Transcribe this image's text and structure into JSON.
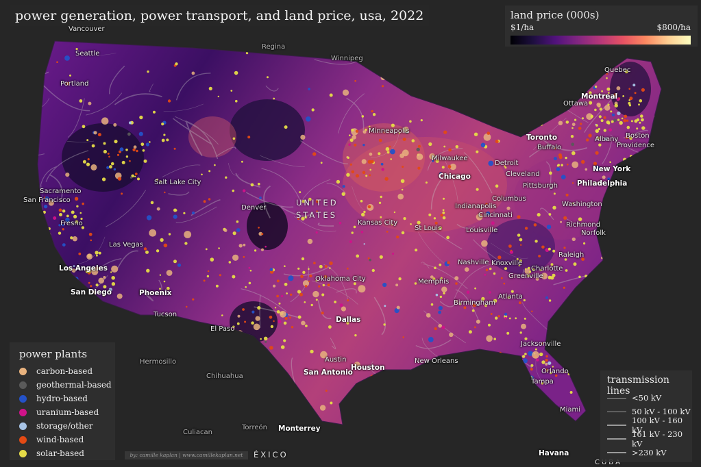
{
  "title": "power generation, power transport, and land price, usa, 2022",
  "land_price_legend": {
    "title": "land price (000s)",
    "min_label": "$1/ha",
    "max_label": "$800/ha"
  },
  "power_plants_legend": {
    "title": "power plants",
    "items": [
      {
        "label": "carbon-based",
        "color": "#e8b27e"
      },
      {
        "label": "geothermal-based",
        "color": "#5a5a5a"
      },
      {
        "label": "hydro-based",
        "color": "#2452c8"
      },
      {
        "label": "uranium-based",
        "color": "#d0128a"
      },
      {
        "label": "storage/other",
        "color": "#a8c4e6"
      },
      {
        "label": "wind-based",
        "color": "#e34a14"
      },
      {
        "label": "solar-based",
        "color": "#e6dc48"
      }
    ]
  },
  "transmission_legend": {
    "title": "transmission lines",
    "items": [
      {
        "label": "<50 kV"
      },
      {
        "label": "50 kV - 100 kV"
      },
      {
        "label": "100 kV - 160 kV"
      },
      {
        "label": "161 kV - 230 kV"
      },
      {
        "label": ">230 kV"
      }
    ]
  },
  "credit": "by: camille kaplan | www.camillekaplan.net",
  "country_labels": {
    "usa_line1": "UNITED",
    "usa_line2": "STATES",
    "mexico": "ÉXICO",
    "cuba": "CUBA"
  },
  "places": {
    "vancouver": "Vancouver",
    "regina": "Regina",
    "winnipeg": "Winnipeg",
    "quebec": "Quebec",
    "montreal": "Montreal",
    "ottawa": "Ottawa",
    "toronto": "Toronto",
    "buffalo": "Buffalo",
    "albany": "Albany",
    "boston": "Boston",
    "providence": "Providence",
    "new_york": "New York",
    "philadelphia": "Philadelphia",
    "washington": "Washington",
    "richmond": "Richmond",
    "norfolk": "Norfolk",
    "raleigh": "Raleigh",
    "charlotte": "Charlotte",
    "greenville": "Greenville",
    "knoxville": "Knoxville",
    "nashville": "Nashville",
    "atlanta": "Atlanta",
    "birmingham": "Birmingham",
    "memphis": "Memphis",
    "jacksonville": "Jacksonville",
    "orlando": "Orlando",
    "tampa": "Tampa",
    "miami": "Miami",
    "havana": "Havana",
    "new_orleans": "New Orleans",
    "houston": "Houston",
    "san_antonio": "San Antonio",
    "austin": "Austin",
    "dallas": "Dallas",
    "oklahoma_city": "Oklahoma City",
    "el_paso": "El Paso",
    "tucson": "Tucson",
    "phoenix": "Phoenix",
    "san_diego": "San Diego",
    "los_angeles": "Los Angeles",
    "las_vegas": "Las Vegas",
    "fresno": "Fresno",
    "san_francisco": "San Francisco",
    "sacramento": "Sacramento",
    "salt_lake_city": "Salt Lake City",
    "denver": "Denver",
    "kansas_city": "Kansas City",
    "st_louis": "St Louis",
    "louisville": "Louisville",
    "indianapolis": "Indianapolis",
    "cincinnati": "Cincinnati",
    "columbus": "Columbus",
    "pittsburgh": "Pittsburgh",
    "cleveland": "Cleveland",
    "detroit": "Detroit",
    "chicago": "Chicago",
    "milwaukee": "Milwaukee",
    "minneapolis": "Minneapolis",
    "portland": "Portland",
    "seattle": "Seattle",
    "hermosillo": "Hermosillo",
    "chihuahua": "Chihuahua",
    "culiacan": "Culiacan",
    "torreon": "Torreón",
    "monterrey": "Monterrey"
  }
}
